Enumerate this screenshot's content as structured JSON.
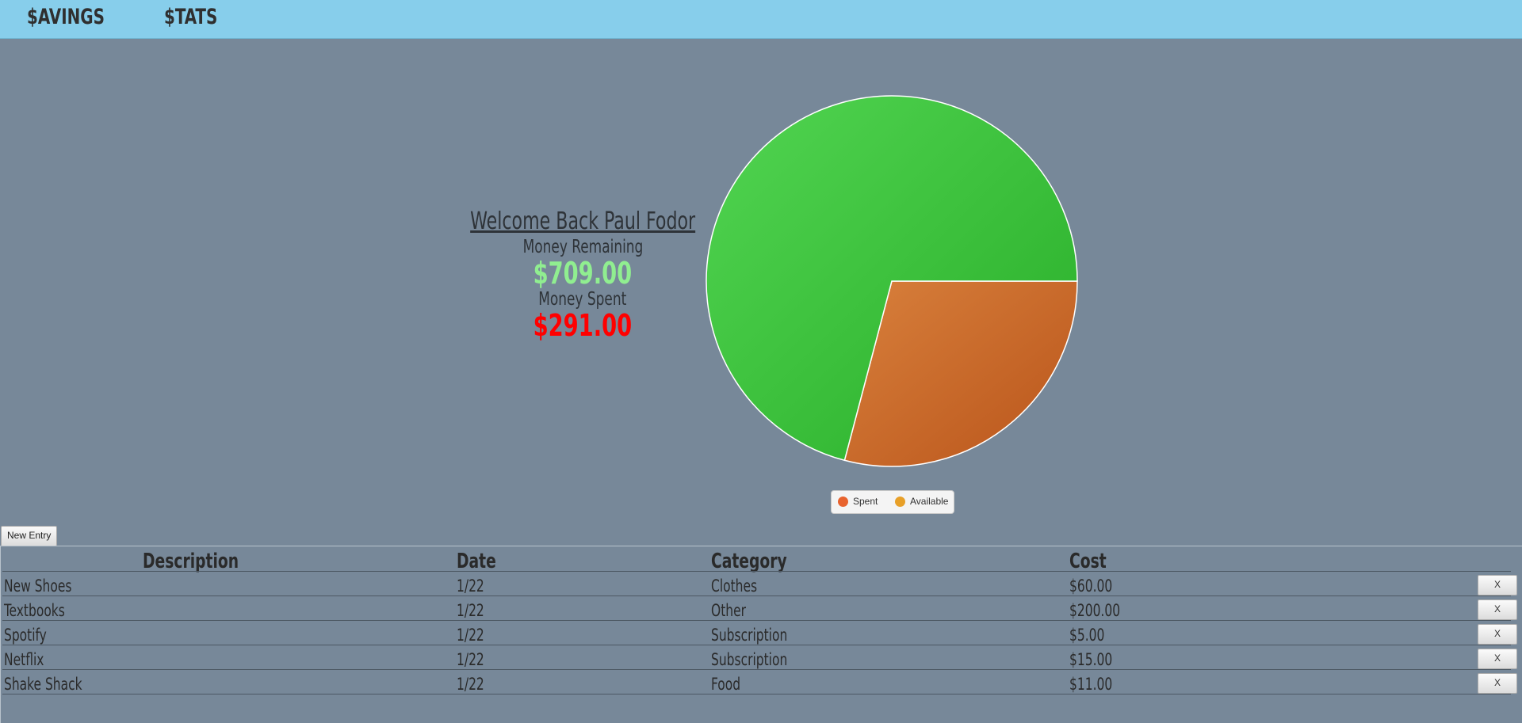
{
  "nav": {
    "savings": "$AVINGS",
    "stats": "$TATS"
  },
  "welcome": {
    "title": "Welcome Back Paul Fodor",
    "remaining_label": "Money Remaining",
    "remaining_value": "$709.00",
    "spent_label": "Money Spent",
    "spent_value": "$291.00",
    "remaining_color": "#90ee90",
    "spent_color": "#ff0000"
  },
  "chart_data": {
    "type": "pie",
    "slices": [
      {
        "label": "Spent",
        "value": 291,
        "color": "#c75f1e"
      },
      {
        "label": "Available",
        "value": 709,
        "color": "#36be36"
      }
    ],
    "legend": [
      "Spent",
      "Available"
    ],
    "legend_colors": [
      "#e8632e",
      "#e8a028"
    ]
  },
  "new_entry_label": "New Entry",
  "table": {
    "headers": [
      "Description",
      "Date",
      "Category",
      "Cost"
    ],
    "rows": [
      {
        "description": "New Shoes",
        "date": "1/22",
        "category": "Clothes",
        "cost": "$60.00"
      },
      {
        "description": "Textbooks",
        "date": "1/22",
        "category": "Other",
        "cost": "$200.00"
      },
      {
        "description": "Spotify",
        "date": "1/22",
        "category": "Subscription",
        "cost": "$5.00"
      },
      {
        "description": "Netflix",
        "date": "1/22",
        "category": "Subscription",
        "cost": "$15.00"
      },
      {
        "description": "Shake Shack",
        "date": "1/22",
        "category": "Food",
        "cost": "$11.00"
      }
    ],
    "delete_label": "X"
  }
}
